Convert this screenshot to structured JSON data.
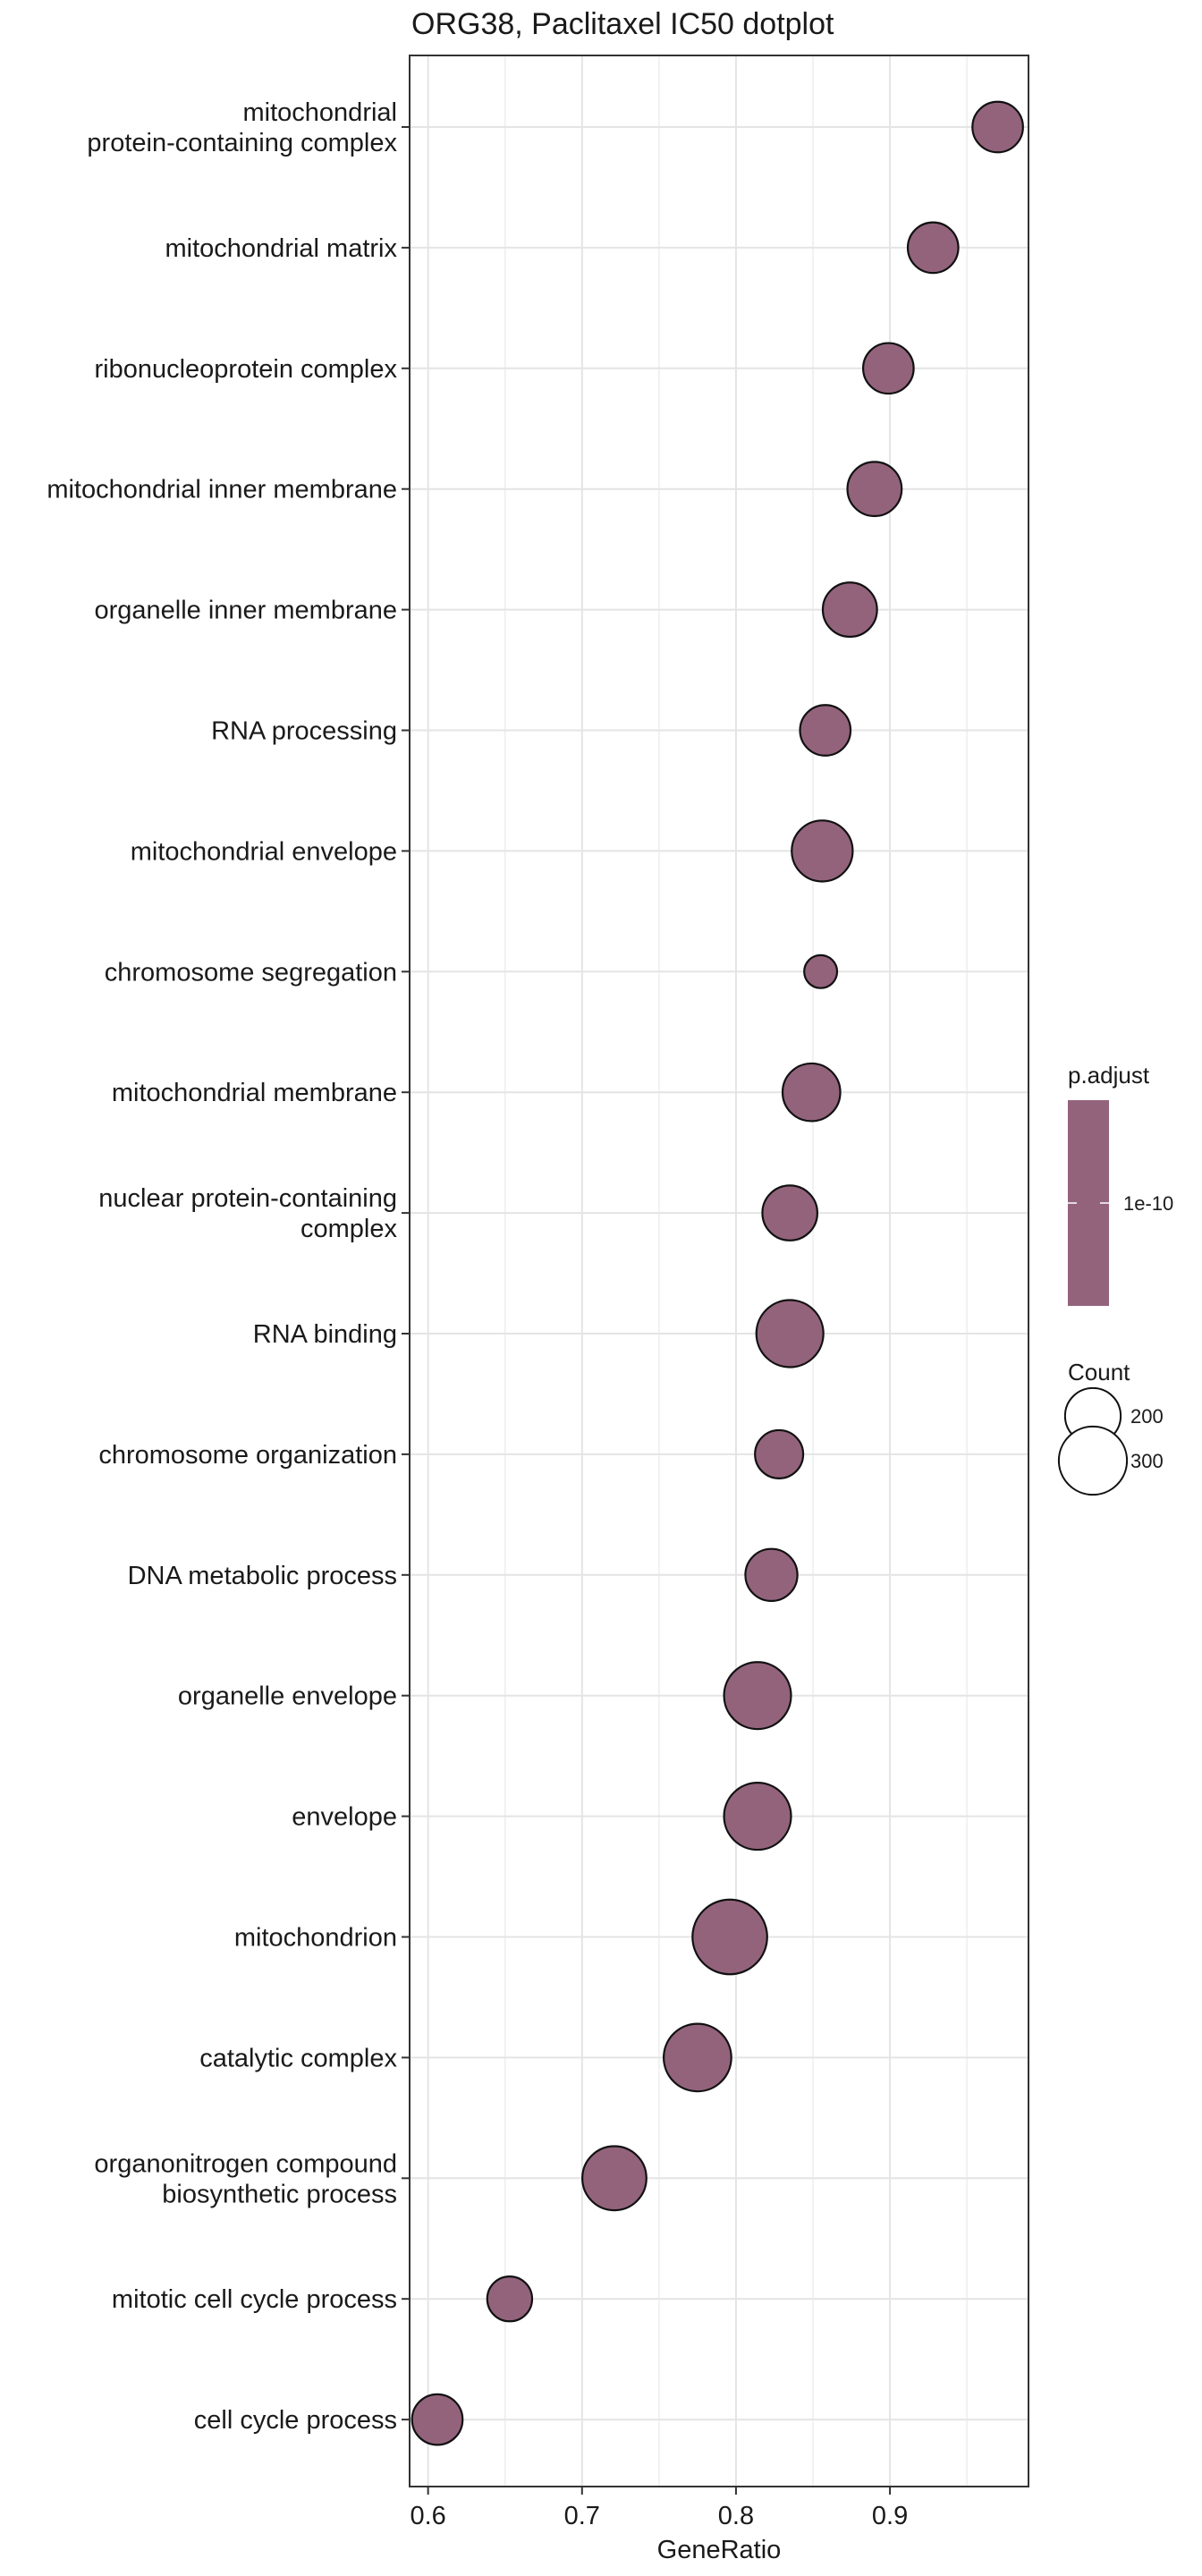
{
  "chart_data": {
    "type": "scatter",
    "title": "ORG38, Paclitaxel IC50 dotplot",
    "xlabel": "GeneRatio",
    "ylabel": "",
    "xlim": [
      0.588,
      0.99
    ],
    "xticks": [
      0.6,
      0.7,
      0.8,
      0.9
    ],
    "xtick_labels": [
      "0.6",
      "0.7",
      "0.8",
      "0.9"
    ],
    "grid": true,
    "point_color": "#93637c",
    "categories": [
      {
        "label": [
          "mitochondrial",
          "protein-containing complex"
        ],
        "x": 0.97,
        "count": 165
      },
      {
        "label": [
          "mitochondrial matrix"
        ],
        "x": 0.928,
        "count": 165
      },
      {
        "label": [
          "ribonucleoprotein complex"
        ],
        "x": 0.899,
        "count": 165
      },
      {
        "label": [
          "mitochondrial inner membrane"
        ],
        "x": 0.89,
        "count": 190
      },
      {
        "label": [
          "organelle inner membrane"
        ],
        "x": 0.874,
        "count": 190
      },
      {
        "label": [
          "RNA processing"
        ],
        "x": 0.858,
        "count": 165
      },
      {
        "label": [
          "mitochondrial envelope"
        ],
        "x": 0.856,
        "count": 240
      },
      {
        "label": [
          "chromosome segregation"
        ],
        "x": 0.855,
        "count": 70
      },
      {
        "label": [
          "mitochondrial membrane"
        ],
        "x": 0.849,
        "count": 215
      },
      {
        "label": [
          "nuclear protein-containing",
          "complex"
        ],
        "x": 0.835,
        "count": 195
      },
      {
        "label": [
          "RNA binding"
        ],
        "x": 0.835,
        "count": 290
      },
      {
        "label": [
          "chromosome organization"
        ],
        "x": 0.828,
        "count": 150
      },
      {
        "label": [
          "DNA metabolic process"
        ],
        "x": 0.823,
        "count": 175
      },
      {
        "label": [
          "organelle envelope"
        ],
        "x": 0.814,
        "count": 290
      },
      {
        "label": [
          "envelope"
        ],
        "x": 0.814,
        "count": 290
      },
      {
        "label": [
          "mitochondrion"
        ],
        "x": 0.796,
        "count": 360
      },
      {
        "label": [
          "catalytic complex"
        ],
        "x": 0.775,
        "count": 295
      },
      {
        "label": [
          "organonitrogen compound",
          "biosynthetic process"
        ],
        "x": 0.721,
        "count": 265
      },
      {
        "label": [
          "mitotic cell cycle process"
        ],
        "x": 0.653,
        "count": 130
      },
      {
        "label": [
          "cell cycle process"
        ],
        "x": 0.606,
        "count": 165
      }
    ],
    "legend": {
      "color_title": "p.adjust",
      "color_tick_label": "1e-10",
      "size_title": "Count",
      "size_entries": [
        {
          "label": "200",
          "count": 200
        },
        {
          "label": "300",
          "count": 300
        }
      ]
    }
  }
}
